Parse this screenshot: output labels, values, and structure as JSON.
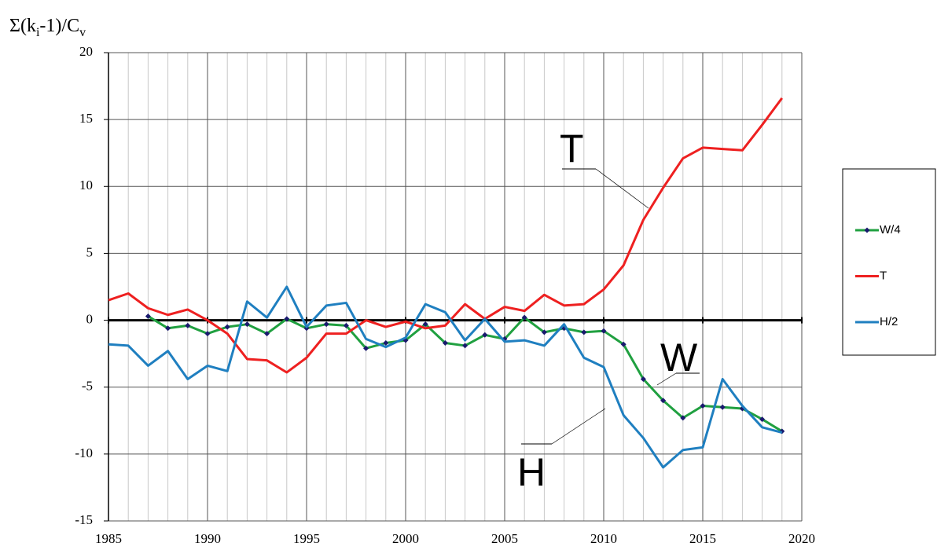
{
  "chart_data": {
    "type": "line",
    "y_label": [
      "Σ(k",
      "i",
      "-1)/C",
      "v"
    ],
    "annotations": [
      "T",
      "W",
      "H"
    ],
    "x": [
      1985,
      1986,
      1987,
      1988,
      1989,
      1990,
      1991,
      1992,
      1993,
      1994,
      1995,
      1996,
      1997,
      1998,
      1999,
      2000,
      2001,
      2002,
      2003,
      2004,
      2005,
      2006,
      2007,
      2008,
      2009,
      2010,
      2011,
      2012,
      2013,
      2014,
      2015,
      2016,
      2017,
      2018,
      2019
    ],
    "series": [
      {
        "name": "W/4",
        "color": "#20a040",
        "marker_color": "#1a1a6e",
        "values": [
          null,
          null,
          0.3,
          -0.6,
          -0.4,
          -1.0,
          -0.5,
          -0.3,
          -1.0,
          0.1,
          -0.6,
          -0.3,
          -0.4,
          -2.1,
          -1.7,
          -1.5,
          -0.3,
          -1.7,
          -1.9,
          -1.1,
          -1.4,
          0.2,
          -0.9,
          -0.6,
          -0.9,
          -0.8,
          -1.8,
          -4.4,
          -6.0,
          -7.3,
          -6.4,
          -6.5,
          -6.6,
          -7.4,
          -8.3
        ]
      },
      {
        "name": "T",
        "color": "#ee2020",
        "values": [
          1.5,
          2.0,
          0.9,
          0.4,
          0.8,
          0.0,
          -1.0,
          -2.9,
          -3.0,
          -3.9,
          -2.8,
          -1.0,
          -1.0,
          0.0,
          -0.5,
          -0.1,
          -0.6,
          -0.4,
          1.2,
          0.1,
          1.0,
          0.7,
          1.9,
          1.1,
          1.2,
          2.3,
          4.1,
          7.5,
          9.9,
          12.1,
          12.9,
          12.8,
          12.7,
          14.6,
          16.6
        ]
      },
      {
        "name": "H/2",
        "color": "#1f7fc0",
        "values": [
          -1.8,
          -1.9,
          -3.4,
          -2.3,
          -4.4,
          -3.4,
          -3.8,
          1.4,
          0.2,
          2.5,
          -0.5,
          1.1,
          1.3,
          -1.4,
          -2.0,
          -1.3,
          1.2,
          0.6,
          -1.5,
          0.1,
          -1.6,
          -1.5,
          -1.9,
          -0.3,
          -2.8,
          -3.5,
          -7.1,
          -8.8,
          -11.0,
          -9.7,
          -9.5,
          -4.4,
          -6.4,
          -8.0,
          -8.4
        ]
      }
    ],
    "xlim": [
      1985,
      2020
    ],
    "xticks": [
      1985,
      1990,
      1995,
      2000,
      2005,
      2010,
      2015,
      2020
    ],
    "x_minor_ticks": [
      1986,
      1987,
      1988,
      1989,
      1991,
      1992,
      1993,
      1994,
      1996,
      1997,
      1998,
      1999,
      2001,
      2002,
      2003,
      2004,
      2006,
      2007,
      2008,
      2009,
      2011,
      2012,
      2013,
      2014,
      2016,
      2017,
      2018,
      2019
    ],
    "ylim": [
      -15,
      20
    ],
    "yticks": [
      -15,
      -10,
      -5,
      0,
      5,
      10,
      15,
      20
    ],
    "grid": true
  }
}
